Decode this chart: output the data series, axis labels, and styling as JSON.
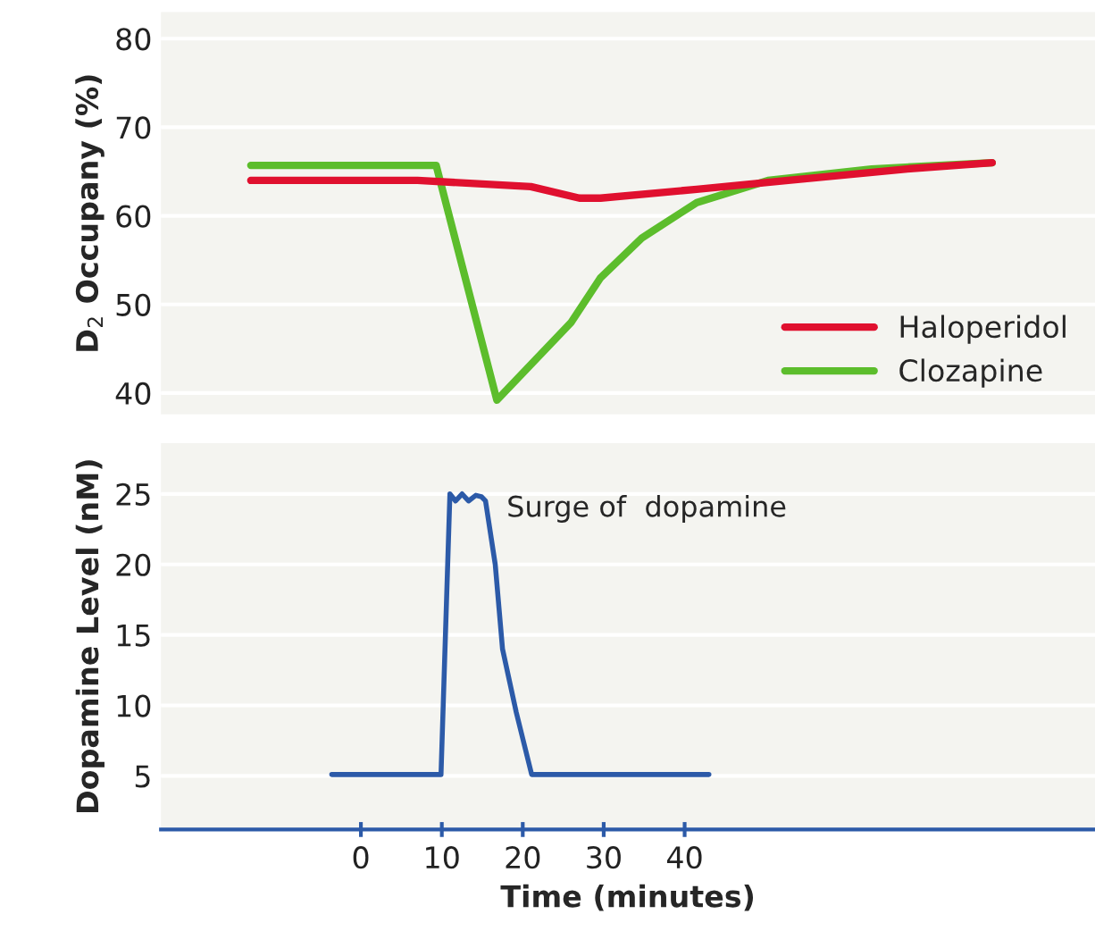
{
  "chart_data": [
    {
      "type": "line",
      "ylabel": "D$_{2}$ Occupany (%)",
      "xlim": [
        -24.7,
        90.7
      ],
      "ylim": [
        37.6,
        83
      ],
      "yticks": [
        40,
        50,
        60,
        70,
        80
      ],
      "tick_labels": "y",
      "grid": "y",
      "legend": "bottom right",
      "line_style": "solid",
      "series": [
        {
          "name": "Haloperidol",
          "color": "#e0102f",
          "x": [
            -13.6,
            7,
            21,
            27,
            29.6,
            41.5,
            52.8,
            67.5,
            78
          ],
          "values": [
            64,
            64,
            63.3,
            62,
            62,
            63,
            64,
            65.3,
            66
          ]
        },
        {
          "name": "Clozapine",
          "color": "#5cbd2c",
          "x": [
            -13.6,
            9.3,
            16.8,
            26,
            29.6,
            34.7,
            41.5,
            50.3,
            63.1,
            78
          ],
          "values": [
            65.7,
            65.7,
            39.2,
            48,
            53,
            57.5,
            61.5,
            64,
            65.3,
            66
          ]
        }
      ]
    },
    {
      "type": "line",
      "xlabel": "Time (minutes)",
      "ylabel": "Dopamine Level (nM)",
      "xlim": [
        -24.7,
        90.7
      ],
      "ylim": [
        1.2,
        28.6
      ],
      "xticks": [
        0,
        10,
        20,
        30,
        40
      ],
      "yticks": [
        5,
        10,
        15,
        20,
        25
      ],
      "grid": "y",
      "line_style": "solid",
      "annotations": [
        "Surge of  dopamine"
      ],
      "series": [
        {
          "color": "#2c5aa8",
          "x": [
            -3.6,
            9.9,
            11,
            11.7,
            12.5,
            13.3,
            14.2,
            14.9,
            15.4,
            16.6,
            17.5,
            19.2,
            21.1,
            43
          ],
          "values": [
            5.1,
            5.1,
            25,
            24.5,
            25,
            24.5,
            24.9,
            24.8,
            24.5,
            20,
            14,
            9.5,
            5.1,
            5.1
          ]
        }
      ]
    }
  ]
}
